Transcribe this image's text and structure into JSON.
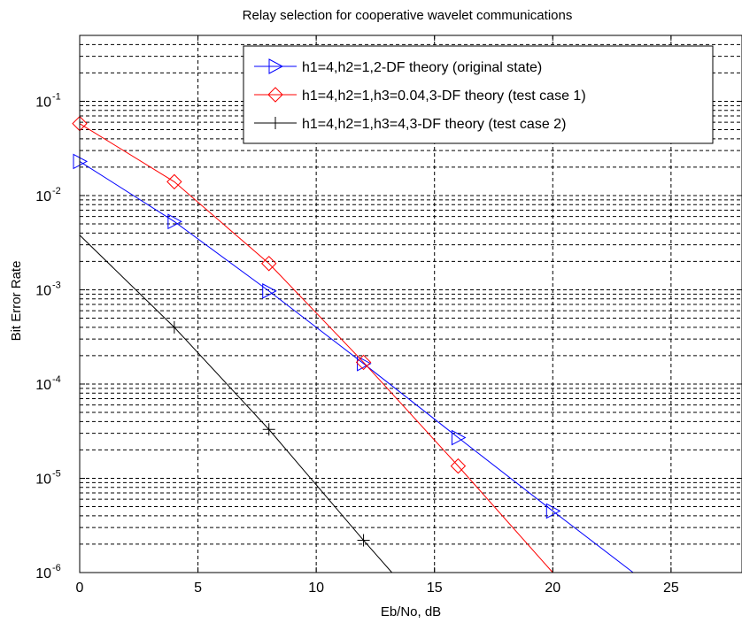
{
  "chart_data": {
    "type": "line",
    "title": "Relay selection for cooperative wavelet communications",
    "xlabel": "Eb/No, dB",
    "ylabel": "Bit Error Rate",
    "xlim": [
      0,
      28
    ],
    "ylim": [
      1e-06,
      0.5
    ],
    "y_scale": "log",
    "grid": true,
    "legend_position": "top-right",
    "x_ticks": [
      "0",
      "5",
      "10",
      "15",
      "20",
      "25"
    ],
    "y_tick_base": "10",
    "y_tick_exponents": [
      "-6",
      "-5",
      "-4",
      "-3",
      "-2",
      "-1"
    ],
    "series": [
      {
        "name": "h1=4,h2=1,2-DF theory (original state)",
        "color": "#0000ff",
        "marker": "triangle-right",
        "x": [
          0,
          4,
          8,
          12,
          16,
          20,
          23.4
        ],
        "y": [
          0.023,
          0.0053,
          0.00097,
          0.000165,
          2.7e-05,
          4.5e-06,
          1e-06
        ],
        "marker_x": [
          0,
          4,
          8,
          12,
          16,
          20
        ],
        "marker_y": [
          0.023,
          0.0053,
          0.00097,
          0.000165,
          2.7e-05,
          4.5e-06
        ]
      },
      {
        "name": "h1=4,h2=1,h3=0.04,3-DF theory (test case 1)",
        "color": "#ff0000",
        "marker": "diamond",
        "x": [
          0,
          4,
          8,
          12,
          16,
          20
        ],
        "y": [
          0.058,
          0.014,
          0.0019,
          0.00017,
          1.35e-05,
          1e-06
        ],
        "marker_x": [
          0,
          4,
          8,
          12,
          16
        ],
        "marker_y": [
          0.058,
          0.014,
          0.0019,
          0.00017,
          1.35e-05
        ]
      },
      {
        "name": "h1=4,h2=1,h3=4,3-DF theory (test case 2)",
        "color": "#000000",
        "marker": "plus",
        "x": [
          0,
          4,
          8,
          12,
          13.2
        ],
        "y": [
          0.0038,
          0.0004,
          3.3e-05,
          2.2e-06,
          1e-06
        ],
        "marker_x": [
          4,
          8,
          12
        ],
        "marker_y": [
          0.0004,
          3.3e-05,
          2.2e-06
        ]
      }
    ]
  }
}
